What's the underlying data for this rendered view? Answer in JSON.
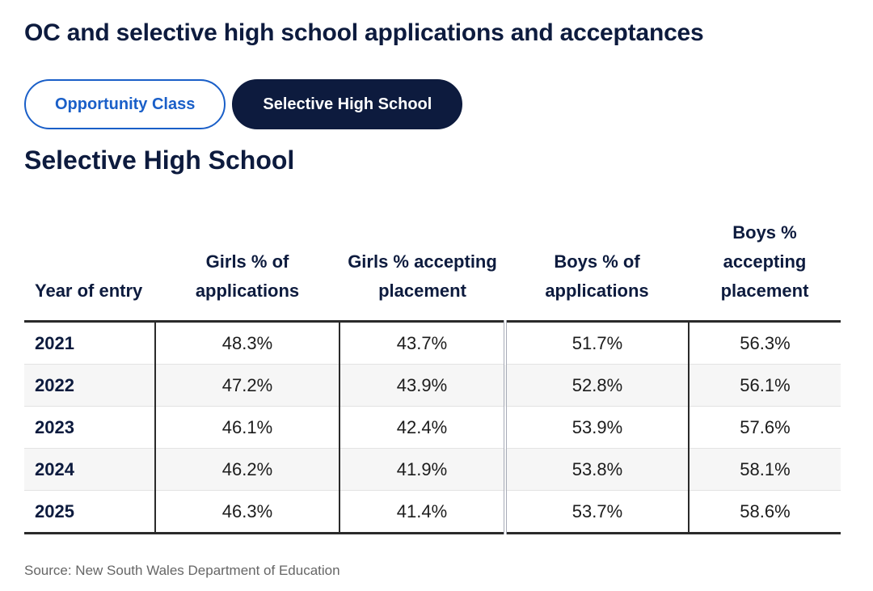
{
  "title": "OC and selective high school applications and acceptances",
  "tabs": {
    "labels": [
      "Opportunity Class",
      "Selective High School"
    ],
    "active": 1
  },
  "table": {
    "heading": "Selective High School",
    "headers": [
      "Year of entry",
      "Girls % of applications",
      "Girls % accepting placement",
      "Boys % of applications",
      "Boys % accepting placement"
    ],
    "rows": [
      [
        "2021",
        "48.3%",
        "43.7%",
        "51.7%",
        "56.3%"
      ],
      [
        "2022",
        "47.2%",
        "43.9%",
        "52.8%",
        "56.1%"
      ],
      [
        "2023",
        "46.1%",
        "42.4%",
        "53.9%",
        "57.6%"
      ],
      [
        "2024",
        "46.2%",
        "41.9%",
        "53.8%",
        "58.1%"
      ],
      [
        "2025",
        "46.3%",
        "41.4%",
        "53.7%",
        "58.6%"
      ]
    ]
  },
  "source": "Source: New South Wales Department of Education"
}
